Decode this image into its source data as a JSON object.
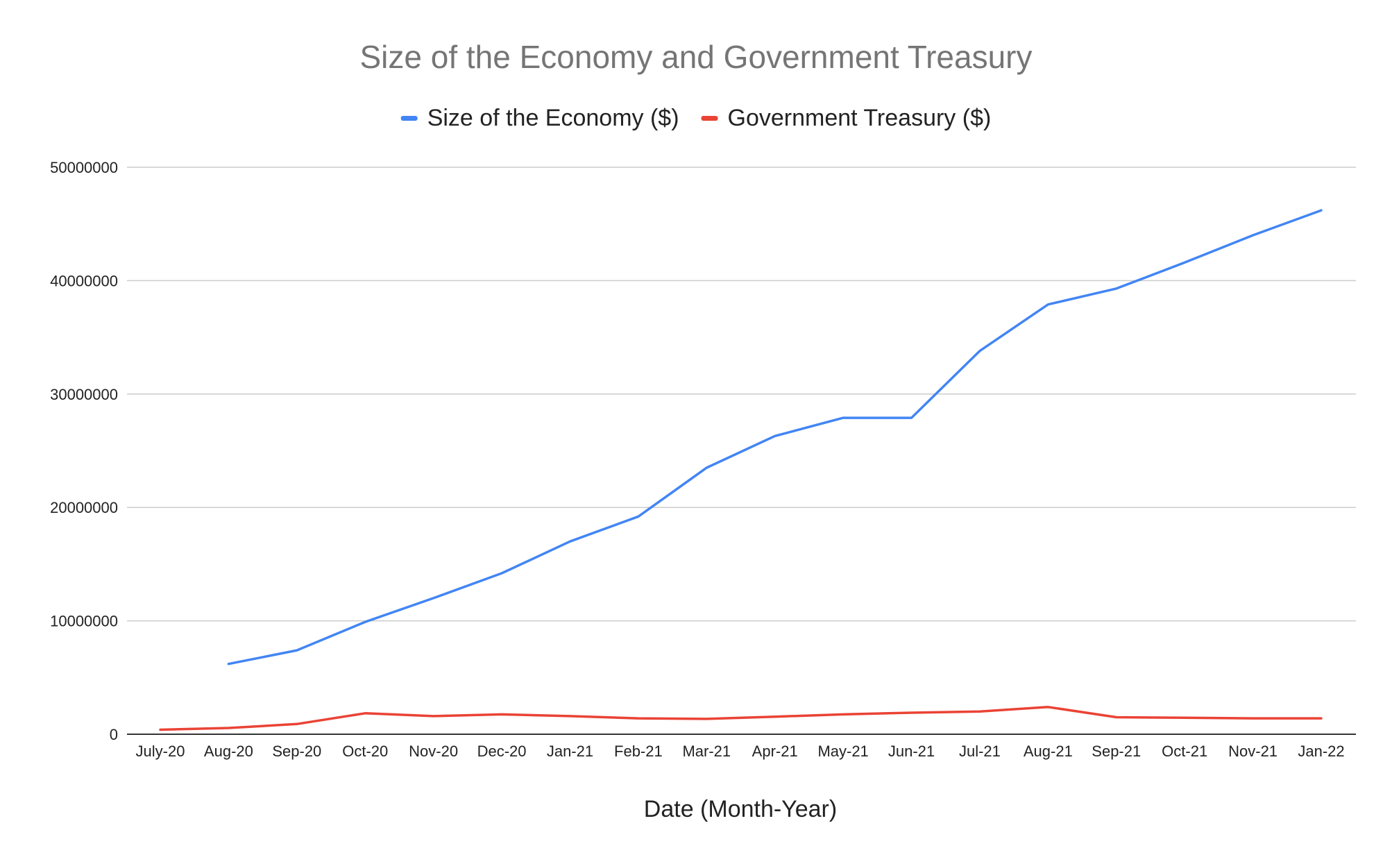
{
  "chart_data": {
    "type": "line",
    "title": "Size of the Economy and Government Treasury",
    "xlabel": "Date (Month-Year)",
    "ylabel": "",
    "ylim": [
      0,
      50000000
    ],
    "yticks": [
      "0",
      "10000000",
      "20000000",
      "30000000",
      "40000000",
      "50000000"
    ],
    "yticks_values": [
      0,
      10000000,
      20000000,
      30000000,
      40000000,
      50000000
    ],
    "grid": true,
    "legend_position": "top-center",
    "categories": [
      "July-20",
      "Aug-20",
      "Sep-20",
      "Oct-20",
      "Nov-20",
      "Dec-20",
      "Jan-21",
      "Feb-21",
      "Mar-21",
      "Apr-21",
      "May-21",
      "Jun-21",
      "Jul-21",
      "Aug-21",
      "Sep-21",
      "Oct-21",
      "Nov-21",
      "Jan-22"
    ],
    "series": [
      {
        "name": "Size of the Economy ($)",
        "color": "#4285f4",
        "values": [
          null,
          6200000,
          7400000,
          9900000,
          12000000,
          14200000,
          17000000,
          19200000,
          23500000,
          26300000,
          27900000,
          27900000,
          33800000,
          37900000,
          39300000,
          41600000,
          44000000,
          46200000
        ]
      },
      {
        "name": "Government Treasury ($)",
        "color": "#ea4335",
        "values": [
          400000,
          550000,
          900000,
          1850000,
          1600000,
          1750000,
          1600000,
          1400000,
          1350000,
          1550000,
          1750000,
          1900000,
          2000000,
          2400000,
          1500000,
          1450000,
          1400000,
          1400000
        ]
      }
    ]
  }
}
